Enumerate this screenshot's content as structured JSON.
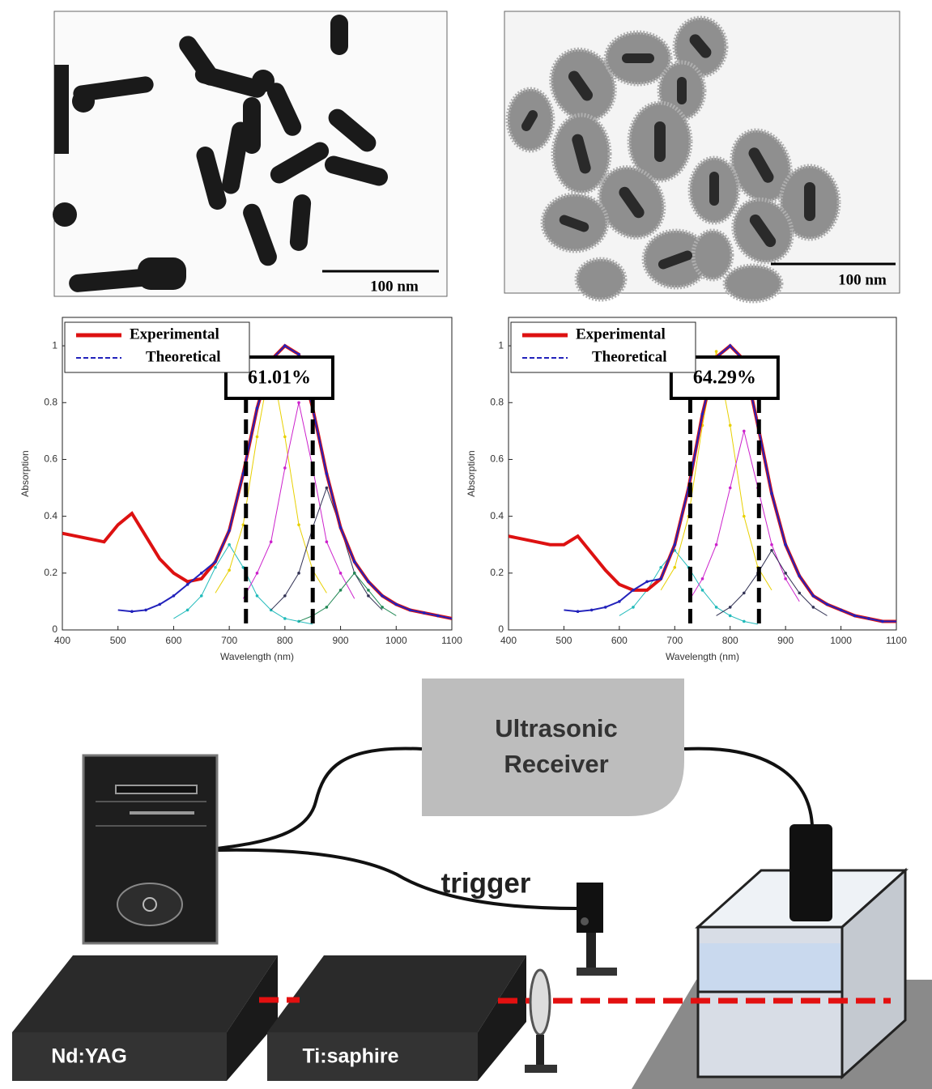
{
  "images": [
    {
      "scale_bar": "100 nm"
    },
    {
      "scale_bar": "100 nm"
    }
  ],
  "chart_data": [
    {
      "type": "line",
      "x_label": "Wavelength (nm)",
      "y_label": "Absorption",
      "x": [
        400,
        425,
        450,
        475,
        500,
        525,
        550,
        575,
        600,
        625,
        650,
        675,
        700,
        725,
        750,
        775,
        800,
        825,
        850,
        875,
        900,
        925,
        950,
        975,
        1000,
        1025,
        1050,
        1075,
        1100
      ],
      "series": [
        {
          "color": "#22bbbb",
          "values": [
            null,
            null,
            null,
            null,
            null,
            null,
            null,
            null,
            0.04,
            0.07,
            0.12,
            0.22,
            0.3,
            0.22,
            0.12,
            0.07,
            0.04,
            0.03,
            0.02,
            null,
            null,
            null,
            null,
            null,
            null,
            null,
            null,
            null,
            null
          ]
        },
        {
          "color": "#e8d000",
          "values": [
            null,
            null,
            null,
            null,
            null,
            null,
            null,
            null,
            null,
            null,
            null,
            0.13,
            0.21,
            0.37,
            0.68,
            0.95,
            0.68,
            0.37,
            0.21,
            0.13,
            null,
            null,
            null,
            null,
            null,
            null,
            null,
            null,
            null
          ]
        },
        {
          "color": "#cc22cc",
          "values": [
            null,
            null,
            null,
            null,
            null,
            null,
            null,
            null,
            null,
            null,
            null,
            null,
            null,
            0.11,
            0.2,
            0.31,
            0.57,
            0.8,
            0.57,
            0.31,
            0.2,
            0.11,
            null,
            null,
            null,
            null,
            null,
            null,
            null
          ]
        },
        {
          "color": "#333355",
          "values": [
            null,
            null,
            null,
            null,
            null,
            null,
            null,
            null,
            null,
            null,
            null,
            null,
            null,
            null,
            null,
            0.07,
            0.12,
            0.2,
            0.36,
            0.5,
            0.36,
            0.2,
            0.12,
            0.07,
            null,
            null,
            null,
            null,
            null
          ]
        },
        {
          "color": "#228855",
          "values": [
            null,
            null,
            null,
            null,
            null,
            null,
            null,
            null,
            null,
            null,
            null,
            null,
            null,
            null,
            null,
            null,
            null,
            0.03,
            0.05,
            0.08,
            0.14,
            0.2,
            0.14,
            0.08,
            0.05,
            null,
            null,
            null,
            null
          ]
        },
        {
          "name": "Experimental",
          "color": "#dd1111",
          "values": [
            0.34,
            0.33,
            0.32,
            0.31,
            0.37,
            0.41,
            0.33,
            0.25,
            0.2,
            0.17,
            0.18,
            0.24,
            0.35,
            0.55,
            0.78,
            0.95,
            1.0,
            0.97,
            0.78,
            0.55,
            0.36,
            0.24,
            0.17,
            0.12,
            0.09,
            0.07,
            0.06,
            0.05,
            0.04
          ]
        },
        {
          "name": "Theoretical",
          "color": "#2222bb",
          "markers": true,
          "values": [
            null,
            null,
            null,
            null,
            0.07,
            0.065,
            0.07,
            0.09,
            0.12,
            0.16,
            0.2,
            0.24,
            0.35,
            0.55,
            0.78,
            0.95,
            1.0,
            0.97,
            0.78,
            0.55,
            0.36,
            0.24,
            0.17,
            0.12,
            0.09,
            0.07,
            0.06,
            0.05,
            0.04
          ]
        }
      ],
      "bands": [
        730,
        850
      ],
      "annotation": "61.01%",
      "xlim": [
        400,
        1100
      ],
      "xticks": [
        400,
        500,
        600,
        700,
        800,
        900,
        1000,
        1100
      ],
      "ylim": [
        0,
        1.1
      ],
      "yticks": [
        0,
        0.2,
        0.4,
        0.6,
        0.8,
        1
      ],
      "legend": "upper left"
    },
    {
      "type": "line",
      "x_label": "Wavelength (nm)",
      "y_label": "Absorption",
      "x": [
        400,
        425,
        450,
        475,
        500,
        525,
        550,
        575,
        600,
        625,
        650,
        675,
        700,
        725,
        750,
        775,
        800,
        825,
        850,
        875,
        900,
        925,
        950,
        975,
        1000,
        1025,
        1050,
        1075,
        1100
      ],
      "series": [
        {
          "color": "#22bbbb",
          "values": [
            null,
            null,
            null,
            null,
            null,
            null,
            null,
            null,
            0.05,
            0.08,
            0.14,
            0.22,
            0.28,
            0.22,
            0.14,
            0.08,
            0.05,
            0.03,
            0.02,
            null,
            null,
            null,
            null,
            null,
            null,
            null,
            null,
            null,
            null
          ]
        },
        {
          "color": "#e8d000",
          "values": [
            null,
            null,
            null,
            null,
            null,
            null,
            null,
            null,
            null,
            null,
            null,
            0.14,
            0.22,
            0.4,
            0.72,
            0.98,
            0.72,
            0.4,
            0.22,
            0.14,
            null,
            null,
            null,
            null,
            null,
            null,
            null,
            null,
            null
          ]
        },
        {
          "color": "#cc22cc",
          "values": [
            null,
            null,
            null,
            null,
            null,
            null,
            null,
            null,
            null,
            null,
            null,
            null,
            null,
            0.1,
            0.18,
            0.3,
            0.5,
            0.7,
            0.5,
            0.3,
            0.18,
            0.1,
            null,
            null,
            null,
            null,
            null,
            null,
            null
          ]
        },
        {
          "color": "#333355",
          "values": [
            null,
            null,
            null,
            null,
            null,
            null,
            null,
            null,
            null,
            null,
            null,
            null,
            null,
            null,
            null,
            0.05,
            0.08,
            0.13,
            0.2,
            0.28,
            0.2,
            0.13,
            0.08,
            0.05,
            null,
            null,
            null,
            null,
            null
          ]
        },
        {
          "name": "Experimental",
          "color": "#dd1111",
          "values": [
            0.33,
            0.32,
            0.31,
            0.3,
            0.3,
            0.33,
            0.27,
            0.21,
            0.16,
            0.14,
            0.14,
            0.18,
            0.3,
            0.5,
            0.76,
            0.96,
            1.0,
            0.95,
            0.72,
            0.48,
            0.3,
            0.19,
            0.12,
            0.09,
            0.07,
            0.05,
            0.04,
            0.03,
            0.03
          ]
        },
        {
          "name": "Theoretical",
          "color": "#2222bb",
          "markers": true,
          "values": [
            null,
            null,
            null,
            null,
            0.07,
            0.065,
            0.07,
            0.08,
            0.1,
            0.14,
            0.17,
            0.18,
            0.3,
            0.5,
            0.76,
            0.96,
            1.0,
            0.95,
            0.72,
            0.48,
            0.3,
            0.19,
            0.12,
            0.09,
            0.07,
            0.05,
            0.04,
            0.03,
            0.03
          ]
        }
      ],
      "bands": [
        728,
        852
      ],
      "annotation": "64.29%",
      "xlim": [
        400,
        1100
      ],
      "xticks": [
        400,
        500,
        600,
        700,
        800,
        900,
        1000,
        1100
      ],
      "ylim": [
        0,
        1.1
      ],
      "yticks": [
        0,
        0.2,
        0.4,
        0.6,
        0.8,
        1
      ],
      "legend": "upper left"
    }
  ],
  "diagram": {
    "receiver": [
      "Ultrasonic",
      "Receiver"
    ],
    "trigger": "trigger",
    "lasers": [
      "Nd:YAG",
      "Ti:saphire"
    ]
  }
}
